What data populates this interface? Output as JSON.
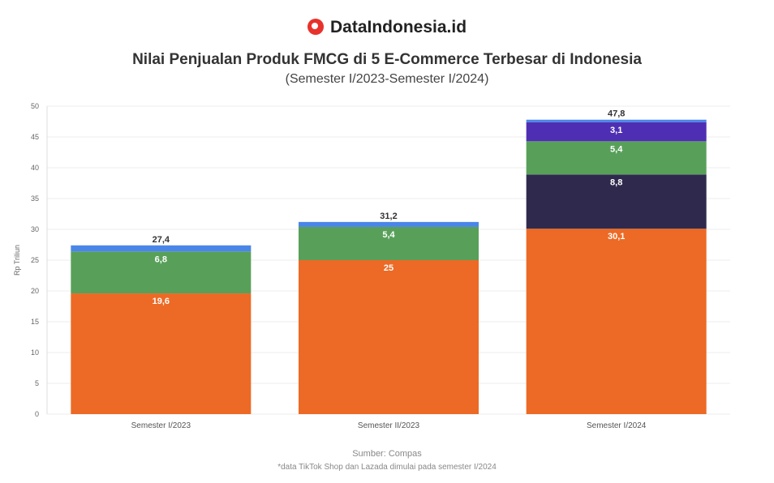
{
  "brand": "DataIndonesia.id",
  "chart_data": {
    "type": "bar",
    "stacked": true,
    "title": "Nilai Penjualan Produk FMCG di 5 E-Commerce Terbesar di Indonesia",
    "subtitle": "(Semester I/2023-Semester I/2024)",
    "ylabel": "Rp Triliun",
    "ylim": [
      0,
      50
    ],
    "yticks": [
      0,
      5,
      10,
      15,
      20,
      25,
      30,
      35,
      40,
      45,
      50
    ],
    "grid": true,
    "categories": [
      "Semester I/2023",
      "Semester II/2023",
      "Semester I/2024"
    ],
    "series": [
      {
        "color": "#EC6A25",
        "values": [
          19.6,
          25.0,
          30.1
        ],
        "labels": [
          "19,6",
          "25",
          "30,1"
        ]
      },
      {
        "color": "#2F2A4D",
        "values": [
          0,
          0,
          8.8
        ],
        "labels": [
          "",
          "",
          "8,8"
        ]
      },
      {
        "color": "#58A05A",
        "values": [
          6.8,
          5.4,
          5.4
        ],
        "labels": [
          "6,8",
          "5,4",
          "5,4"
        ]
      },
      {
        "color": "#4E2FB3",
        "values": [
          0,
          0,
          3.1
        ],
        "labels": [
          "",
          "",
          "3,1"
        ]
      },
      {
        "color": "#4A86E8",
        "values": [
          1.0,
          0.8,
          0.4
        ],
        "labels": [
          "",
          "",
          ""
        ]
      }
    ],
    "totals": [
      "27,4",
      "31,2",
      "47,8"
    ],
    "source": "Sumber: Compas",
    "note": "*data TikTok Shop dan Lazada dimulai pada semester I/2024"
  }
}
